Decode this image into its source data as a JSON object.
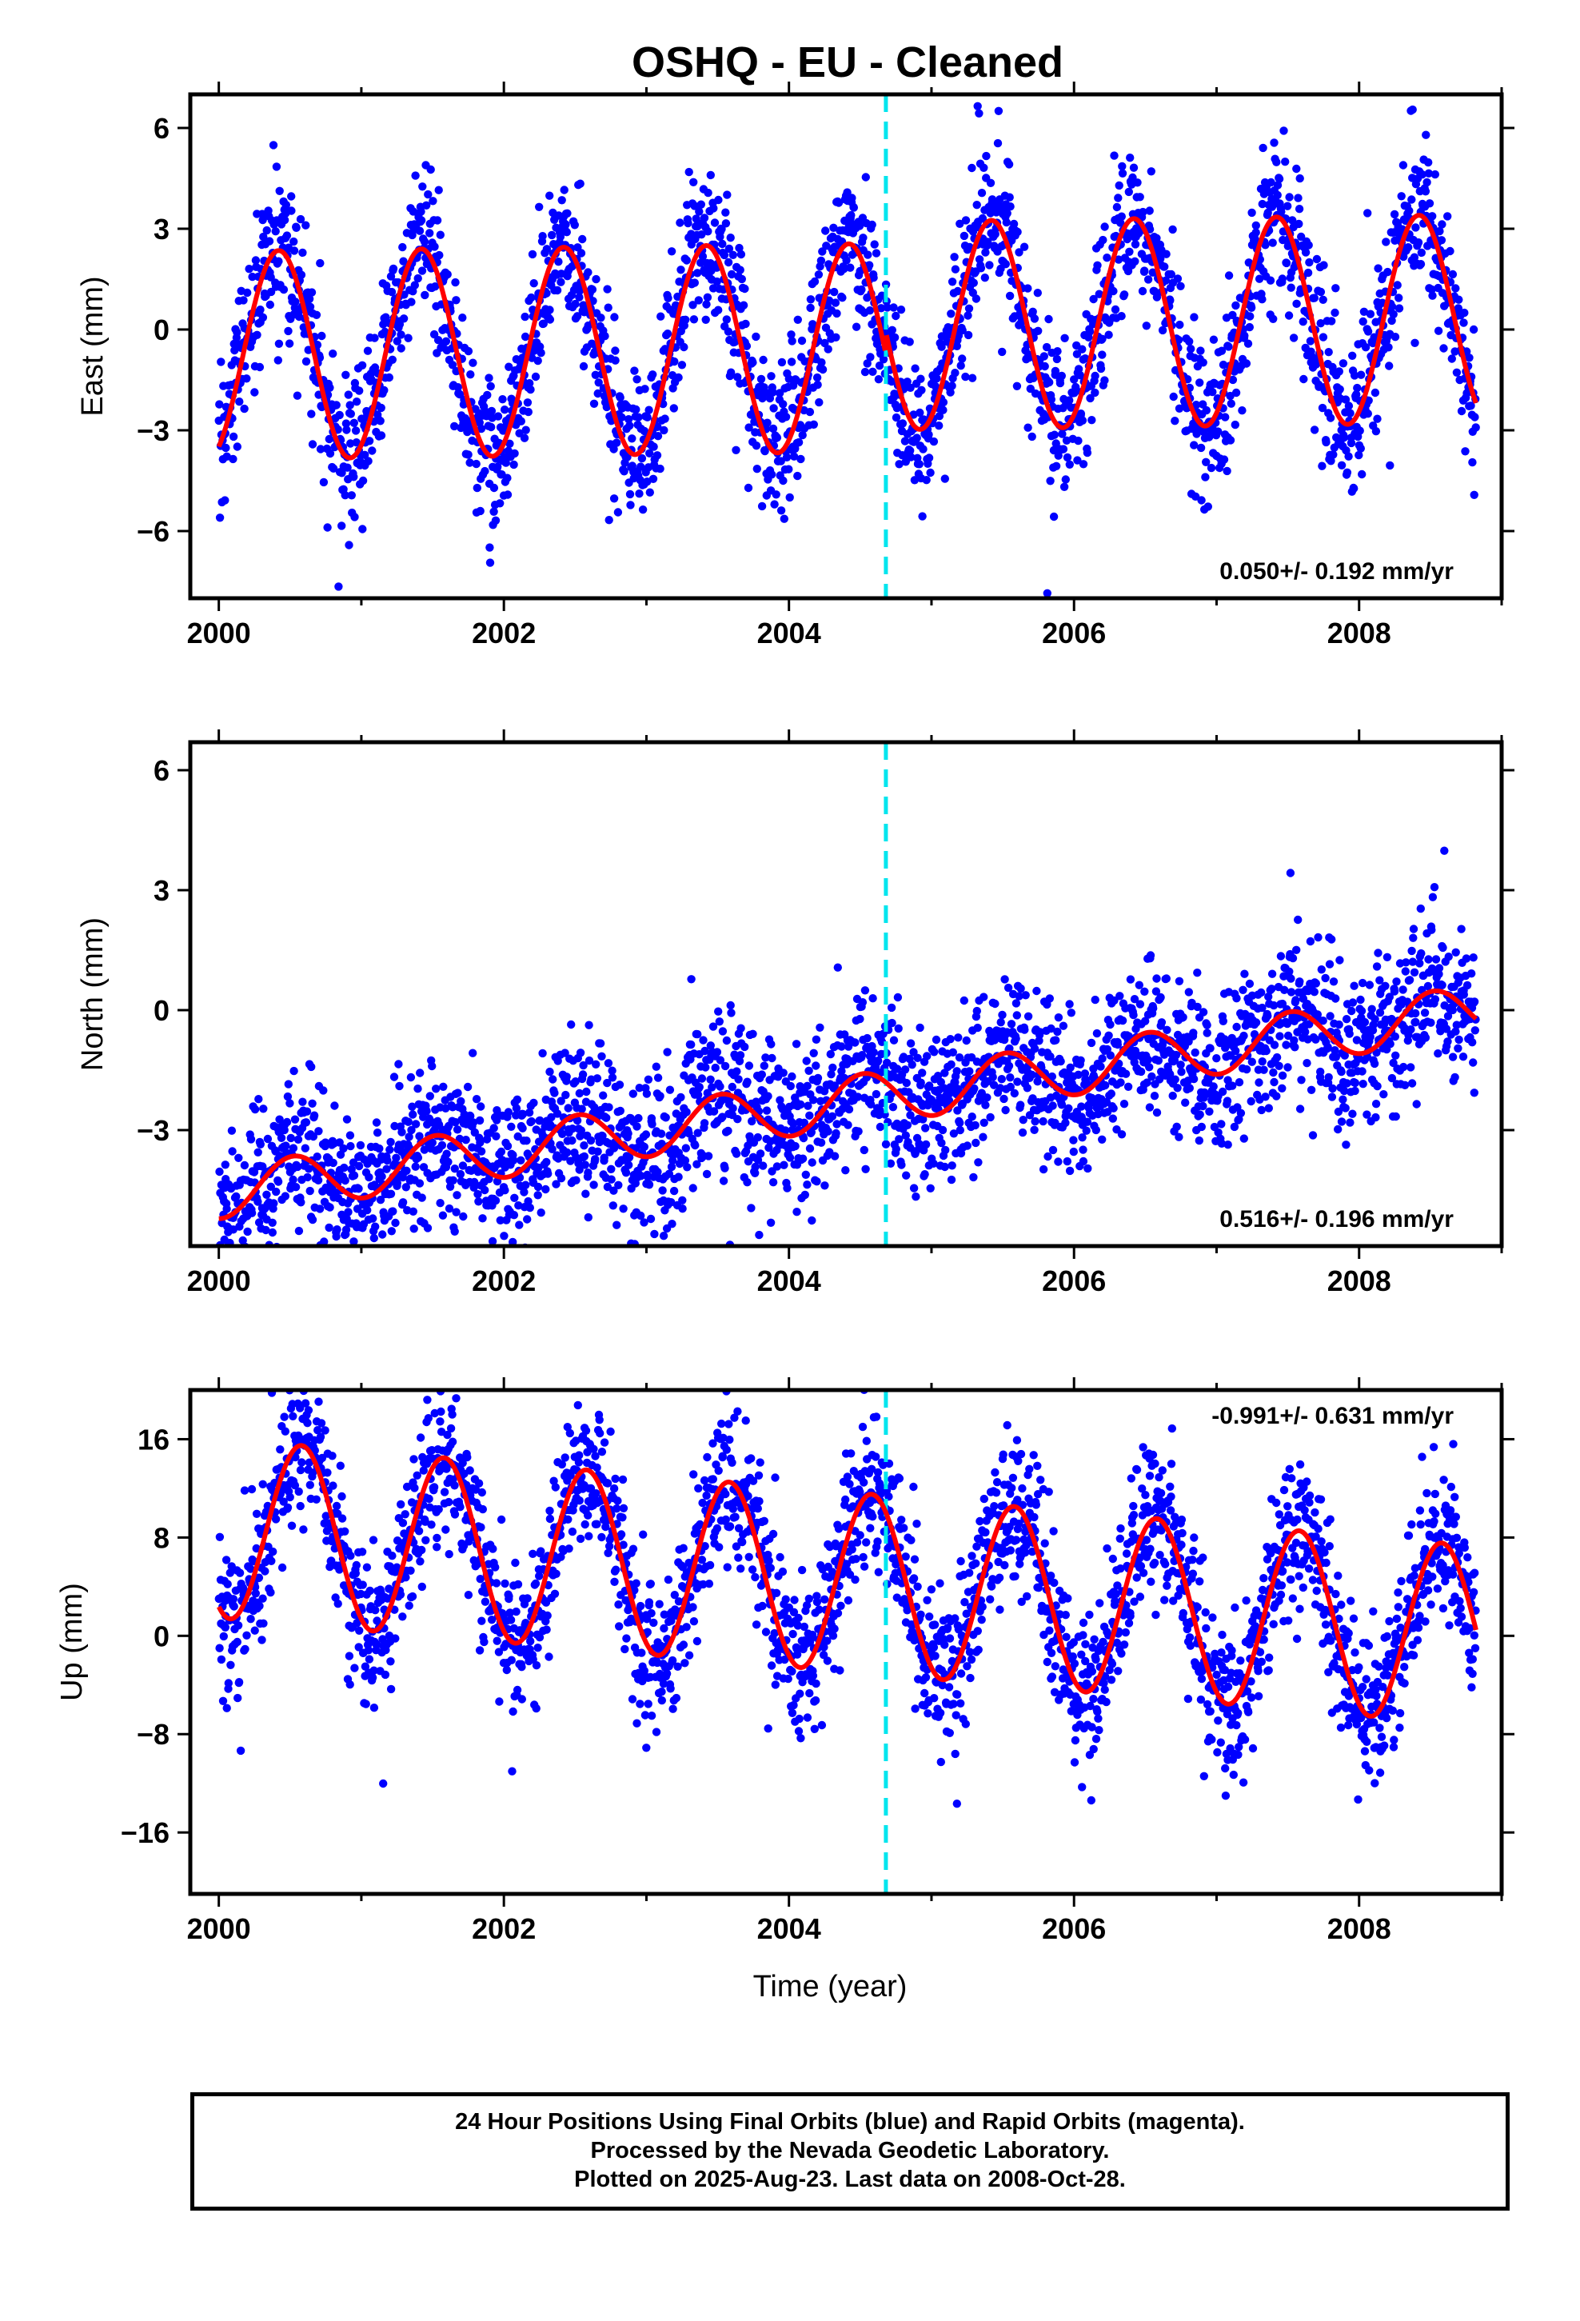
{
  "title": "OSHQ  - EU - Cleaned",
  "footer": {
    "line1": "24 Hour Positions Using Final Orbits (blue) and Rapid Orbits (magenta).",
    "line2": "Processed by the Nevada Geodetic Laboratory.",
    "line3": "Plotted on 2025-Aug-23. Last data on 2008-Oct-28."
  },
  "colors": {
    "final_points": "#0000ff",
    "rapid_points": "#ff00ff",
    "model_fit": "#ff0000",
    "equipment_change": "#00e5ee"
  },
  "chart_data": [
    {
      "type": "scatter",
      "title": "",
      "xlabel": "",
      "ylabel": "East (mm)",
      "xlim": [
        1999.8,
        2009.0
      ],
      "ylim": [
        -8,
        7
      ],
      "x_ticks": [
        2000,
        2002,
        2004,
        2006,
        2008
      ],
      "y_ticks": [
        -6,
        -3,
        0,
        3,
        6
      ],
      "rate_label": "0.050+/- 0.192 mm/yr",
      "rate_label_position": "bottom-right",
      "discontinuity_x": 2004.68,
      "data_range": [
        2000.0,
        2008.82
      ],
      "model": {
        "offset": -0.55,
        "trend": 0.05,
        "annual_amplitude": 3.1,
        "annual_peak": 0.42,
        "step_at": 2004.68,
        "step": 0.65
      },
      "series": [
        {
          "name": "Final Orbits (blue)",
          "color": "#0000ff",
          "sample_points": [
            [
              2000.1,
              -1.5
            ],
            [
              2000.3,
              1.8
            ],
            [
              2000.4,
              2.6
            ],
            [
              2000.6,
              1.2
            ],
            [
              2000.9,
              -3.8
            ],
            [
              2001.1,
              -2.5
            ],
            [
              2001.4,
              2.2
            ],
            [
              2001.9,
              -3.7
            ],
            [
              2002.4,
              2.4
            ],
            [
              2002.9,
              -3.9
            ],
            [
              2003.4,
              2.3
            ],
            [
              2003.9,
              -3.6
            ],
            [
              2004.4,
              2.5
            ],
            [
              2004.9,
              -2.8
            ],
            [
              2005.4,
              3.5
            ],
            [
              2005.9,
              -2.6
            ],
            [
              2006.4,
              3.7
            ],
            [
              2006.9,
              -2.5
            ],
            [
              2007.4,
              3.6
            ],
            [
              2007.9,
              -2.4
            ],
            [
              2008.4,
              3.6
            ],
            [
              2008.8,
              -2.3
            ]
          ]
        }
      ],
      "fit": {
        "name": "model",
        "color": "#ff0000"
      }
    },
    {
      "type": "scatter",
      "title": "",
      "xlabel": "",
      "ylabel": "North (mm)",
      "xlim": [
        1999.8,
        2009.0
      ],
      "ylim": [
        -5.9,
        6.7
      ],
      "x_ticks": [
        2000,
        2002,
        2004,
        2006,
        2008
      ],
      "y_ticks": [
        -3,
        0,
        3,
        6
      ],
      "rate_label": "0.516+/- 0.196 mm/yr",
      "rate_label_position": "bottom-right",
      "discontinuity_x": 2004.68,
      "data_range": [
        2000.0,
        2008.82
      ],
      "model": {
        "offset": -2.3,
        "trend": 0.516,
        "annual_amplitude": 0.65,
        "annual_peak": 0.52,
        "step_at": 2004.68,
        "step": 0.0
      },
      "series": [
        {
          "name": "Final Orbits (blue)",
          "color": "#0000ff",
          "sample_points": [
            [
              2000.0,
              -2.7
            ],
            [
              2000.5,
              -1.2
            ],
            [
              2000.8,
              -2.6
            ],
            [
              2001.5,
              -0.7
            ],
            [
              2002.0,
              -1.7
            ],
            [
              2002.5,
              -0.4
            ],
            [
              2003.0,
              -1.4
            ],
            [
              2003.5,
              0.4
            ],
            [
              2004.0,
              -0.8
            ],
            [
              2004.5,
              0.8
            ],
            [
              2005.0,
              0.2
            ],
            [
              2005.5,
              1.9
            ],
            [
              2006.0,
              0.8
            ],
            [
              2006.5,
              2.4
            ],
            [
              2007.0,
              1.3
            ],
            [
              2007.5,
              3.0
            ],
            [
              2008.0,
              1.9
            ],
            [
              2008.5,
              3.5
            ],
            [
              2008.8,
              2.0
            ]
          ]
        }
      ],
      "fit": {
        "name": "model",
        "color": "#ff0000"
      }
    },
    {
      "type": "scatter",
      "title": "",
      "xlabel": "Time (year)",
      "ylabel": "Up (mm)",
      "xlim": [
        1999.8,
        2009.0
      ],
      "ylim": [
        -21,
        20
      ],
      "x_ticks": [
        2000,
        2002,
        2004,
        2006,
        2008
      ],
      "y_ticks": [
        -16,
        -8,
        0,
        8,
        16
      ],
      "rate_label": "-0.991+/- 0.631 mm/yr",
      "rate_label_position": "top-right",
      "discontinuity_x": 2004.68,
      "data_range": [
        2000.0,
        2008.82
      ],
      "model": {
        "offset": 4.4,
        "trend": -0.991,
        "annual_amplitude": 7.3,
        "annual_peak": 0.58,
        "step_at": 2004.68,
        "step": 0.0
      },
      "series": [
        {
          "name": "Final Orbits (blue)",
          "color": "#0000ff",
          "sample_points": [
            [
              2000.0,
              -1.5
            ],
            [
              2000.6,
              11.0
            ],
            [
              2001.1,
              -2.0
            ],
            [
              2001.6,
              10.5
            ],
            [
              2002.1,
              -3.0
            ],
            [
              2002.6,
              9.5
            ],
            [
              2003.1,
              -4.0
            ],
            [
              2003.6,
              8.5
            ],
            [
              2004.1,
              -5.0
            ],
            [
              2004.6,
              7.5
            ],
            [
              2005.1,
              -6.0
            ],
            [
              2005.6,
              6.0
            ],
            [
              2006.1,
              -7.0
            ],
            [
              2006.6,
              5.0
            ],
            [
              2007.1,
              -8.5
            ],
            [
              2007.6,
              4.0
            ],
            [
              2008.1,
              -9.5
            ],
            [
              2008.6,
              3.5
            ],
            [
              2008.8,
              -5.0
            ]
          ]
        }
      ],
      "fit": {
        "name": "model",
        "color": "#ff0000"
      }
    }
  ]
}
